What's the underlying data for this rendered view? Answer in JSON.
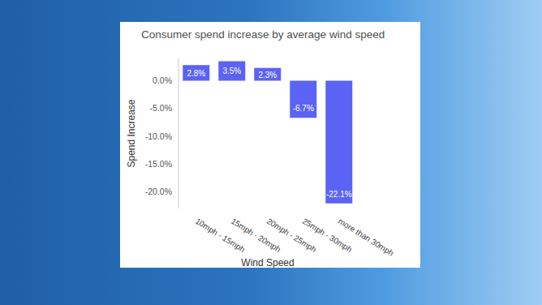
{
  "chart_data": {
    "type": "bar",
    "title": "Consumer spend increase by average wind speed",
    "x_label": "Wind Speed",
    "y_label": "Spend Increase",
    "categories": [
      "10mph - 15mph",
      "15mph - 20mph",
      "20mph - 25mph",
      "25mph - 30mph",
      "more than 30mph"
    ],
    "values": [
      2.8,
      3.5,
      2.3,
      -6.7,
      -22.1
    ],
    "value_labels": [
      "2.8%",
      "3.5%",
      "2.3%",
      "-6.7%",
      "-22.1%"
    ],
    "color": "#5b63f4",
    "ylim": [
      -23,
      4
    ],
    "yticks": [
      {
        "value": 0,
        "label": "0.0%"
      },
      {
        "value": -5,
        "label": "-5.0%"
      },
      {
        "value": -10,
        "label": "-10.0%"
      },
      {
        "value": -15,
        "label": "-15.0%"
      },
      {
        "value": -20,
        "label": "-20.0%"
      }
    ],
    "grid": false,
    "data_labels": true
  }
}
